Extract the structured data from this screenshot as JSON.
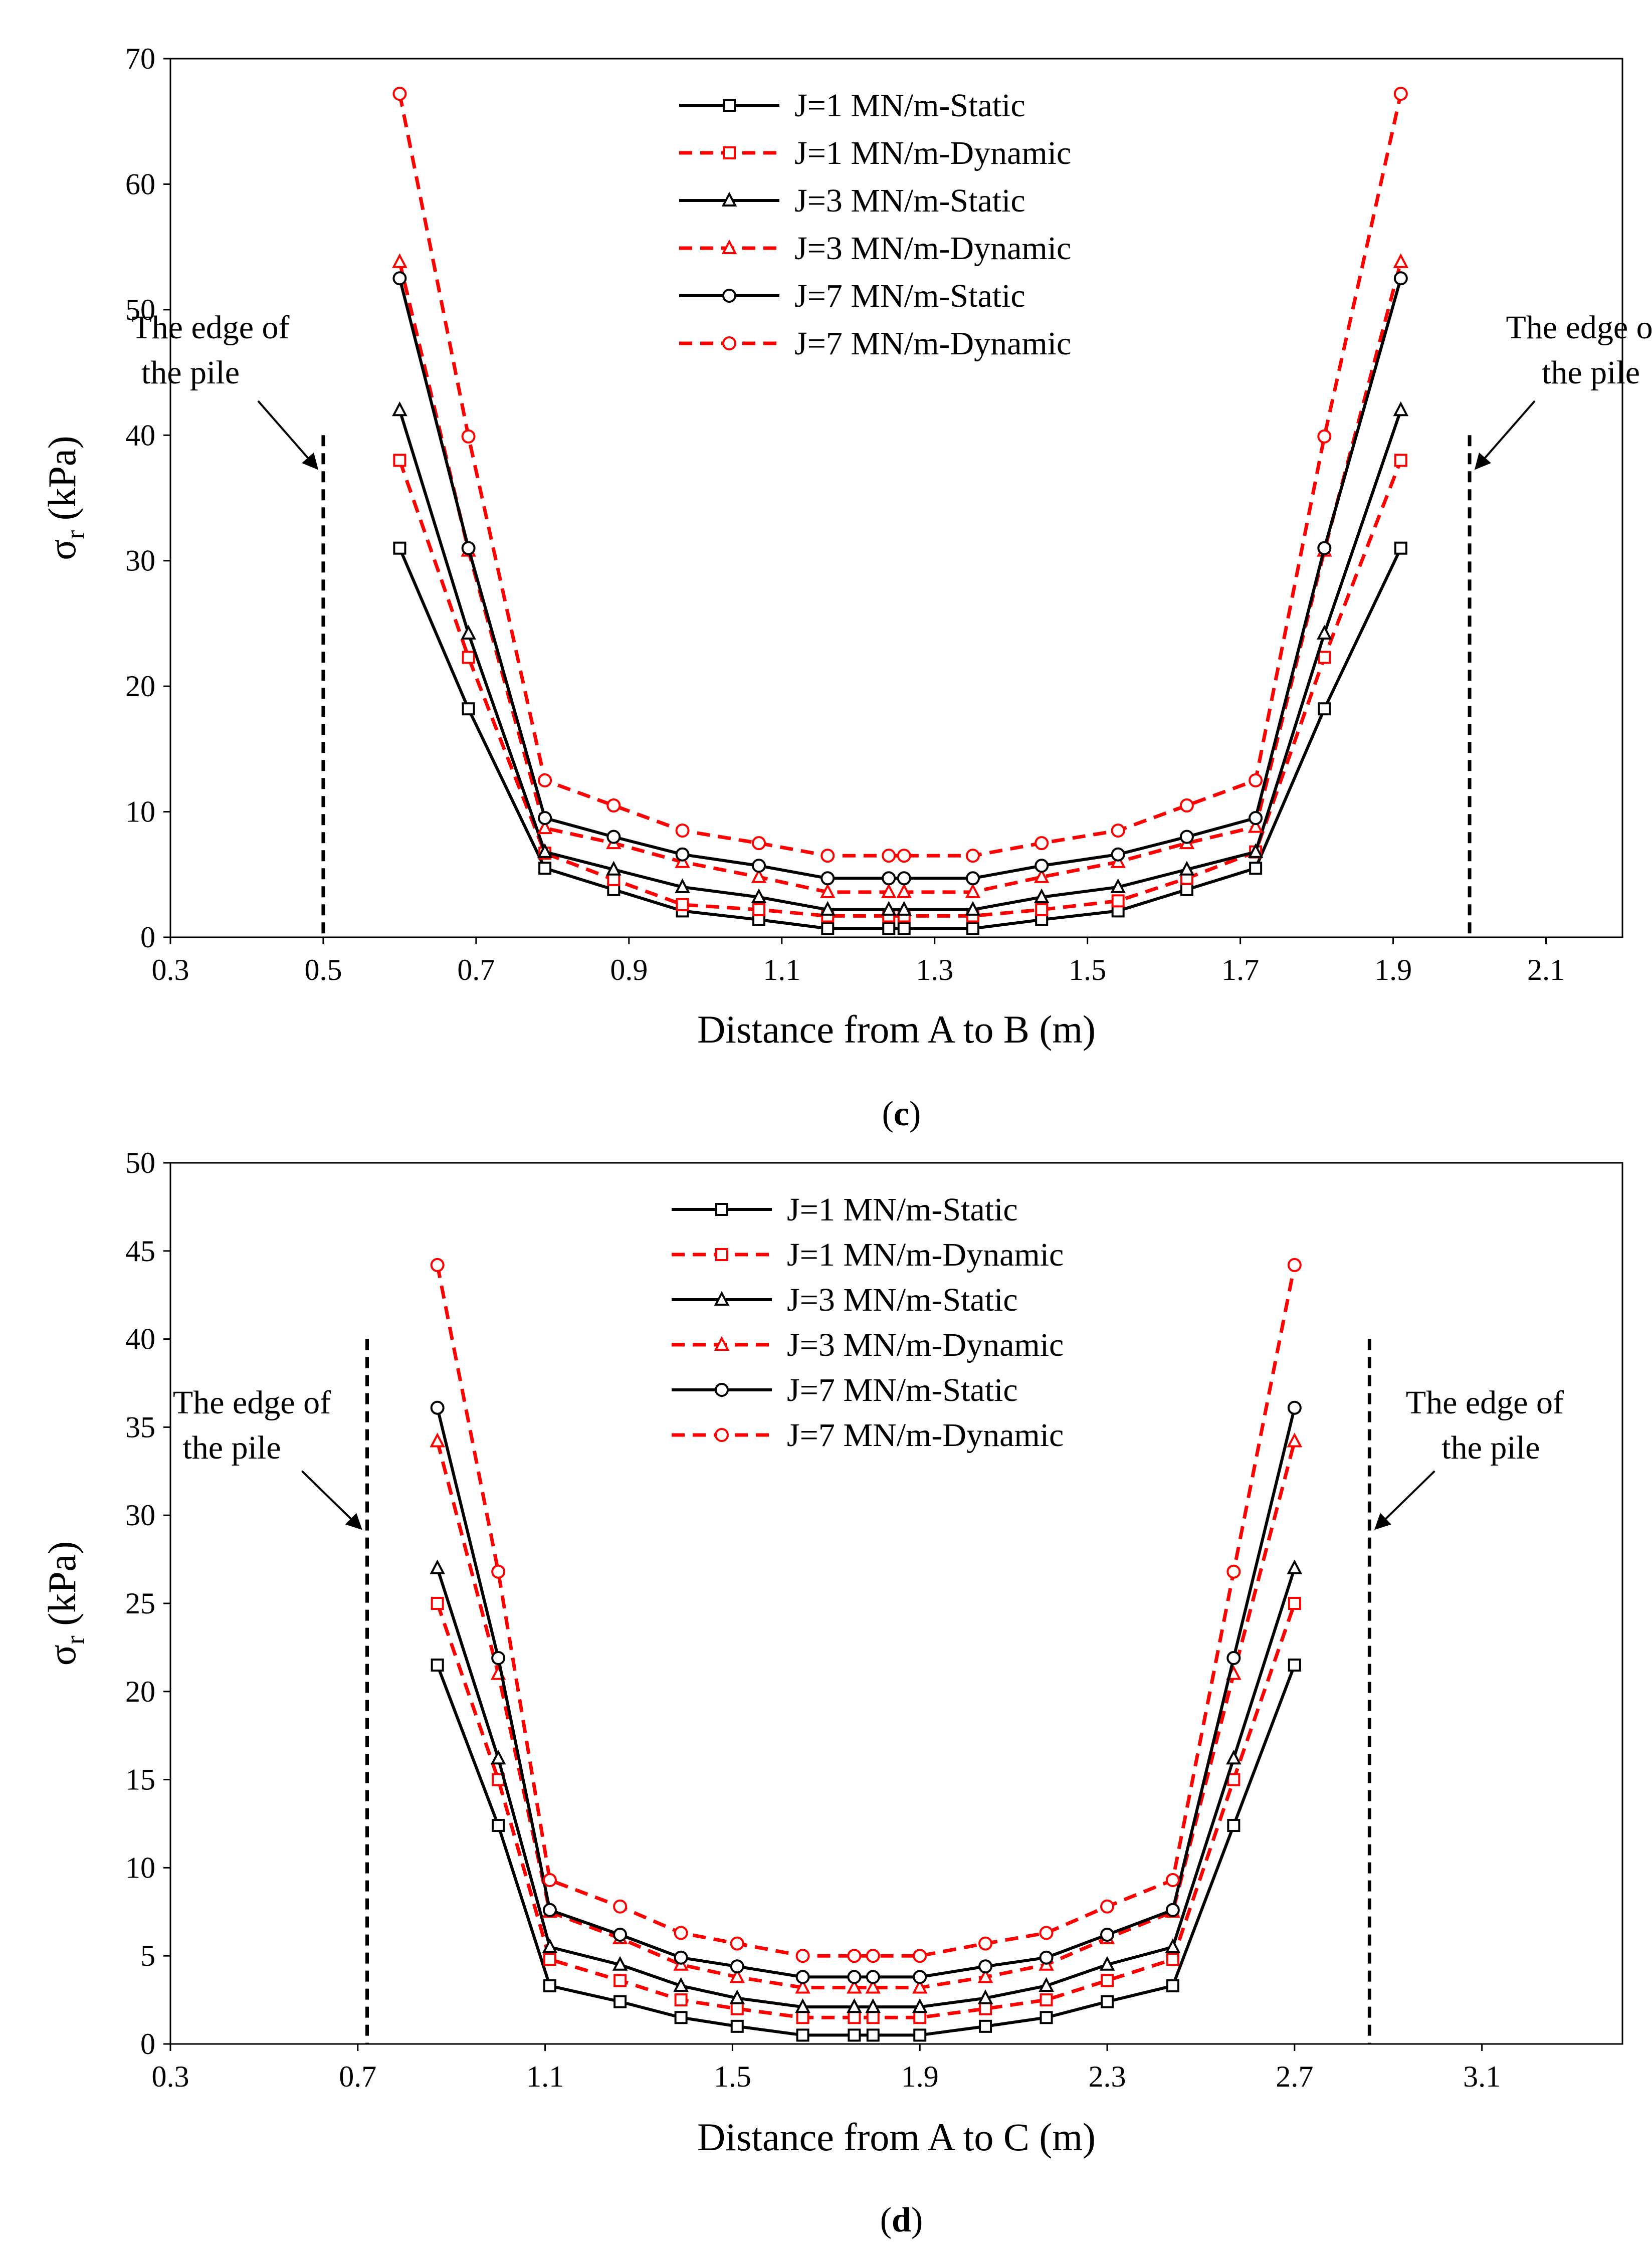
{
  "chart_data": [
    {
      "type": "line",
      "caption": "(c)",
      "xlabel": "Distance from A to B (m)",
      "ylabel_main": "σ",
      "ylabel_sub": "r",
      "ylabel_unit": "(kPa)",
      "xlim": [
        0.3,
        2.2
      ],
      "ylim": [
        0,
        70
      ],
      "xticks": [
        0.3,
        0.5,
        0.7,
        0.9,
        1.1,
        1.3,
        1.5,
        1.7,
        1.9,
        2.1
      ],
      "yticks": [
        0,
        10,
        20,
        30,
        40,
        50,
        60,
        70
      ],
      "x": [
        0.6,
        0.69,
        0.79,
        0.88,
        0.97,
        1.07,
        1.16,
        1.24,
        1.26,
        1.35,
        1.44,
        1.54,
        1.63,
        1.72,
        1.81,
        1.91
      ],
      "series": [
        {
          "name": "J=1 MN/m-Static",
          "style": "solid",
          "color": "#000000",
          "marker": "square",
          "values": [
            31,
            18.2,
            5.5,
            3.8,
            2.1,
            1.4,
            0.7,
            0.7,
            0.7,
            0.7,
            1.4,
            2.1,
            3.8,
            5.5,
            18.2,
            31
          ]
        },
        {
          "name": "J=1 MN/m-Dynamic",
          "style": "dashed",
          "color": "#ff0000",
          "marker": "square",
          "values": [
            38,
            22.3,
            6.7,
            4.6,
            2.6,
            2.2,
            1.7,
            1.7,
            1.7,
            1.7,
            2.2,
            2.9,
            4.7,
            6.8,
            22.3,
            38
          ]
        },
        {
          "name": "J=3 MN/m-Static",
          "style": "solid",
          "color": "#000000",
          "marker": "triangle",
          "values": [
            42,
            24.2,
            6.8,
            5.4,
            4.0,
            3.2,
            2.2,
            2.2,
            2.2,
            2.2,
            3.2,
            4.0,
            5.4,
            6.8,
            24.2,
            42
          ]
        },
        {
          "name": "J=3 MN/m-Dynamic",
          "style": "dashed",
          "color": "#ff0000",
          "marker": "triangle",
          "values": [
            53.8,
            30.8,
            8.7,
            7.5,
            6.0,
            4.8,
            3.6,
            3.6,
            3.6,
            3.6,
            4.8,
            6.0,
            7.5,
            8.8,
            30.8,
            53.8
          ]
        },
        {
          "name": "J=7 MN/m-Static",
          "style": "solid",
          "color": "#000000",
          "marker": "circle",
          "values": [
            52.5,
            31,
            9.5,
            8.0,
            6.6,
            5.7,
            4.7,
            4.7,
            4.7,
            4.7,
            5.7,
            6.6,
            8.0,
            9.5,
            31,
            52.5
          ]
        },
        {
          "name": "J=7 MN/m-Dynamic",
          "style": "dashed",
          "color": "#ff0000",
          "marker": "circle",
          "values": [
            67.2,
            39.9,
            12.5,
            10.5,
            8.5,
            7.5,
            6.5,
            6.5,
            6.5,
            6.5,
            7.5,
            8.5,
            10.5,
            12.5,
            39.9,
            67.2
          ]
        }
      ],
      "edge_lines": [
        {
          "x": 0.5,
          "y_top": 40
        },
        {
          "x": 2.0,
          "y_top": 40
        }
      ],
      "annotations": [
        {
          "line1": "The edge of",
          "line2": "the pile",
          "side": "left"
        },
        {
          "line1": "The edge of",
          "line2": "the pile",
          "side": "right"
        }
      ],
      "legend_position": "top-center",
      "grid": false
    },
    {
      "type": "line",
      "caption": "(d)",
      "xlabel": "Distance from A to C (m)",
      "ylabel_main": "σ",
      "ylabel_sub": "r",
      "ylabel_unit": "(kPa)",
      "xlim": [
        0.3,
        3.4
      ],
      "ylim": [
        0,
        50
      ],
      "xticks": [
        0.3,
        0.7,
        1.1,
        1.5,
        1.9,
        2.3,
        2.7,
        3.1
      ],
      "yticks": [
        0,
        5,
        10,
        15,
        20,
        25,
        30,
        35,
        40,
        45,
        50
      ],
      "x": [
        0.87,
        1.0,
        1.11,
        1.26,
        1.39,
        1.51,
        1.65,
        1.76,
        1.8,
        1.9,
        2.04,
        2.17,
        2.3,
        2.44,
        2.57,
        2.7
      ],
      "series": [
        {
          "name": "J=1 MN/m-Static",
          "style": "solid",
          "color": "#000000",
          "marker": "square",
          "values": [
            21.5,
            12.4,
            3.3,
            2.4,
            1.5,
            1.0,
            0.5,
            0.5,
            0.5,
            0.5,
            1.0,
            1.5,
            2.4,
            3.3,
            12.4,
            21.5
          ]
        },
        {
          "name": "J=1 MN/m-Dynamic",
          "style": "dashed",
          "color": "#ff0000",
          "marker": "square",
          "values": [
            25,
            15,
            4.8,
            3.6,
            2.5,
            2.0,
            1.5,
            1.5,
            1.5,
            1.5,
            2.0,
            2.5,
            3.6,
            4.8,
            15,
            25
          ]
        },
        {
          "name": "J=3 MN/m-Static",
          "style": "solid",
          "color": "#000000",
          "marker": "triangle",
          "values": [
            27,
            16.2,
            5.5,
            4.5,
            3.3,
            2.6,
            2.1,
            2.1,
            2.1,
            2.1,
            2.6,
            3.3,
            4.5,
            5.5,
            16.2,
            27
          ]
        },
        {
          "name": "J=3 MN/m-Dynamic",
          "style": "dashed",
          "color": "#ff0000",
          "marker": "triangle",
          "values": [
            34.2,
            21,
            7.5,
            6.0,
            4.5,
            3.8,
            3.2,
            3.2,
            3.2,
            3.2,
            3.8,
            4.5,
            6.0,
            7.5,
            21,
            34.2
          ]
        },
        {
          "name": "J=7 MN/m-Static",
          "style": "solid",
          "color": "#000000",
          "marker": "circle",
          "values": [
            36.1,
            21.9,
            7.6,
            6.2,
            4.9,
            4.4,
            3.8,
            3.8,
            3.8,
            3.8,
            4.4,
            4.9,
            6.2,
            7.6,
            21.9,
            36.1
          ]
        },
        {
          "name": "J=7 MN/m-Dynamic",
          "style": "dashed",
          "color": "#ff0000",
          "marker": "circle",
          "values": [
            44.2,
            26.8,
            9.3,
            7.8,
            6.3,
            5.7,
            5.0,
            5.0,
            5.0,
            5.0,
            5.7,
            6.3,
            7.8,
            9.3,
            26.8,
            44.2
          ]
        }
      ],
      "edge_lines": [
        {
          "x": 0.72,
          "y_top": 40
        },
        {
          "x": 2.86,
          "y_top": 40
        }
      ],
      "annotations": [
        {
          "line1": "The edge of",
          "line2": "the pile",
          "side": "left"
        },
        {
          "line1": "The edge of",
          "line2": "the pile",
          "side": "right"
        }
      ],
      "legend_position": "top-center",
      "grid": false
    }
  ]
}
